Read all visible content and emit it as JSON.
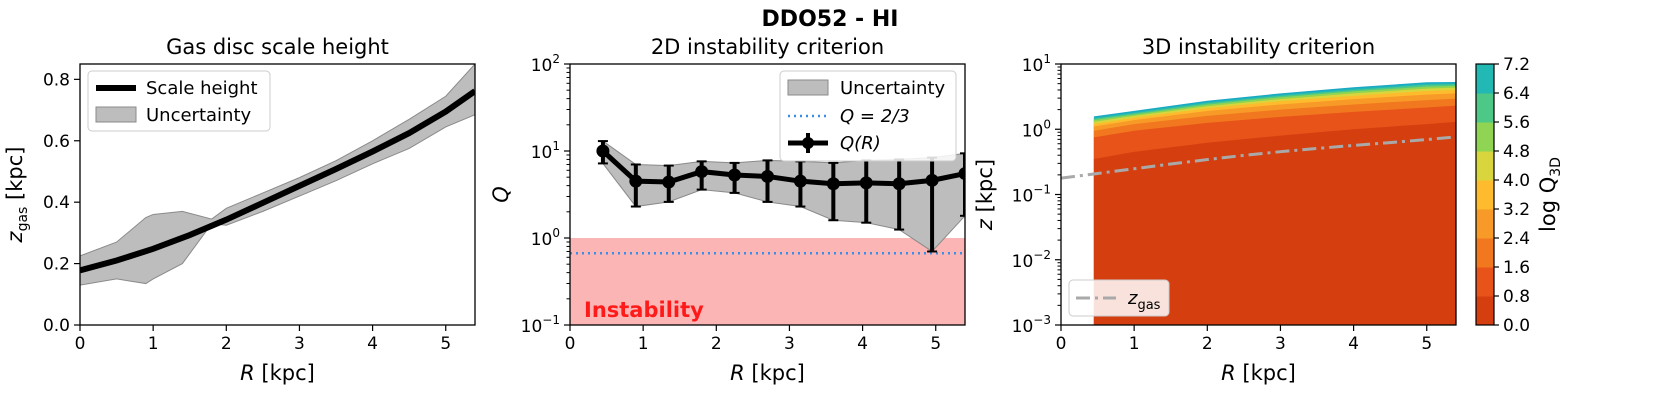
{
  "figure_title": "DDO52 - HI",
  "chart_data": [
    {
      "type": "line",
      "title": "Gas disc scale height",
      "xlabel": "R [kpc]",
      "ylabel": "z_gas [kpc]",
      "xlim": [
        0,
        5.4
      ],
      "ylim": [
        0,
        0.85
      ],
      "xticks": [
        "0",
        "1",
        "2",
        "3",
        "4",
        "5"
      ],
      "yticks": [
        "0.0",
        "0.2",
        "0.4",
        "0.6",
        "0.8"
      ],
      "legend": {
        "position": "top-left",
        "entries": [
          "Scale height",
          "Uncertainty"
        ]
      },
      "series": [
        {
          "name": "Scale height",
          "x": [
            0,
            0.5,
            1.0,
            1.5,
            2.0,
            2.5,
            3.0,
            3.5,
            4.0,
            4.5,
            5.0,
            5.4
          ],
          "values": [
            0.178,
            0.21,
            0.248,
            0.293,
            0.343,
            0.398,
            0.453,
            0.508,
            0.565,
            0.625,
            0.695,
            0.762
          ]
        }
      ],
      "uncertainty": {
        "name": "Uncertainty",
        "x": [
          0,
          0.5,
          0.9,
          1.0,
          1.4,
          1.8,
          2.0,
          2.5,
          3.0,
          3.5,
          4.0,
          4.5,
          5.0,
          5.4
        ],
        "upper": [
          0.225,
          0.27,
          0.35,
          0.36,
          0.37,
          0.345,
          0.38,
          0.43,
          0.48,
          0.535,
          0.6,
          0.67,
          0.745,
          0.85
        ],
        "lower": [
          0.13,
          0.15,
          0.135,
          0.15,
          0.2,
          0.33,
          0.325,
          0.37,
          0.42,
          0.47,
          0.525,
          0.575,
          0.645,
          0.685
        ]
      }
    },
    {
      "type": "line",
      "title": "2D instability criterion",
      "xlabel": "R [kpc]",
      "ylabel": "Q",
      "yscale": "log",
      "xlim": [
        0,
        5.4
      ],
      "ylim": [
        0.1,
        100
      ],
      "xticks": [
        "0",
        "1",
        "2",
        "3",
        "4",
        "5"
      ],
      "yticks": [
        {
          "base": "10",
          "exp": "−1"
        },
        {
          "base": "10",
          "exp": "0"
        },
        {
          "base": "10",
          "exp": "1"
        },
        {
          "base": "10",
          "exp": "2"
        }
      ],
      "legend": {
        "position": "top-right",
        "entries": [
          "Uncertainty",
          "Q = 2/3",
          "Q(R)"
        ]
      },
      "reference_line": {
        "name": "Q = 2/3",
        "value": 0.667
      },
      "instability_region": {
        "label": "Instability",
        "from": 0.1,
        "to": 1.0
      },
      "series": [
        {
          "name": "Q(R)",
          "x": [
            0.45,
            0.9,
            1.35,
            1.8,
            2.25,
            2.7,
            3.15,
            3.6,
            4.05,
            4.5,
            4.95,
            5.4
          ],
          "values": [
            10.0,
            4.5,
            4.4,
            5.8,
            5.3,
            5.1,
            4.5,
            4.2,
            4.3,
            4.2,
            4.6,
            5.5
          ],
          "err_low": [
            7.2,
            2.3,
            2.6,
            3.6,
            3.3,
            2.6,
            2.3,
            1.6,
            1.5,
            1.25,
            0.7,
            1.8
          ],
          "err_high": [
            13.0,
            7.0,
            6.8,
            7.6,
            7.3,
            7.8,
            7.6,
            7.3,
            7.8,
            8.0,
            8.4,
            9.4
          ]
        }
      ]
    },
    {
      "type": "heatmap",
      "title": "3D instability criterion",
      "xlabel": "R [kpc]",
      "ylabel": "z [kpc]",
      "yscale": "log",
      "xlim": [
        0,
        5.4
      ],
      "ylim": [
        0.001,
        10
      ],
      "xticks": [
        "0",
        "1",
        "2",
        "3",
        "4",
        "5"
      ],
      "yticks": [
        {
          "base": "10",
          "exp": "−3"
        },
        {
          "base": "10",
          "exp": "−2"
        },
        {
          "base": "10",
          "exp": "−1"
        },
        {
          "base": "10",
          "exp": "0"
        },
        {
          "base": "10",
          "exp": "1"
        }
      ],
      "colorbar": {
        "label": "log Q_3D",
        "label_main": "log Q",
        "label_sub": "3D",
        "levels": [
          "0.0",
          "0.8",
          "1.6",
          "2.4",
          "3.2",
          "4.0",
          "4.8",
          "5.6",
          "6.4",
          "7.2"
        ],
        "colors": [
          "#d53e0f",
          "#e8531a",
          "#f2781f",
          "#f79a28",
          "#fdbb2d",
          "#d9d53c",
          "#8fd452",
          "#4ec886",
          "#22b8b4",
          "#1aa8c4"
        ]
      },
      "contour_boundaries": {
        "x": [
          0.45,
          1.0,
          2.0,
          3.0,
          4.0,
          5.0,
          5.4
        ],
        "level_upper_z": [
          [
            0.35,
            0.45,
            0.62,
            0.8,
            1.0,
            1.2,
            1.3
          ],
          [
            0.75,
            0.95,
            1.25,
            1.55,
            1.85,
            2.15,
            2.3
          ],
          [
            0.95,
            1.2,
            1.6,
            2.0,
            2.4,
            2.8,
            2.95
          ],
          [
            1.1,
            1.38,
            1.9,
            2.4,
            2.9,
            3.4,
            3.55
          ],
          [
            1.2,
            1.5,
            2.1,
            2.7,
            3.25,
            3.85,
            4.0
          ],
          [
            1.3,
            1.6,
            2.25,
            2.9,
            3.55,
            4.2,
            4.35
          ],
          [
            1.38,
            1.68,
            2.38,
            3.1,
            3.8,
            4.5,
            4.65
          ],
          [
            1.45,
            1.76,
            2.5,
            3.25,
            4.0,
            4.8,
            4.9
          ],
          [
            1.5,
            1.82,
            2.6,
            3.38,
            4.2,
            5.0,
            5.05
          ]
        ]
      },
      "series": [
        {
          "name": "z_gas",
          "label_main": "z",
          "label_sub": "gas",
          "x": [
            0,
            0.5,
            1.0,
            1.5,
            2.0,
            2.5,
            3.0,
            3.5,
            4.0,
            4.5,
            5.0,
            5.4
          ],
          "values": [
            0.178,
            0.21,
            0.248,
            0.293,
            0.343,
            0.398,
            0.453,
            0.508,
            0.565,
            0.625,
            0.695,
            0.762
          ]
        }
      ]
    }
  ]
}
